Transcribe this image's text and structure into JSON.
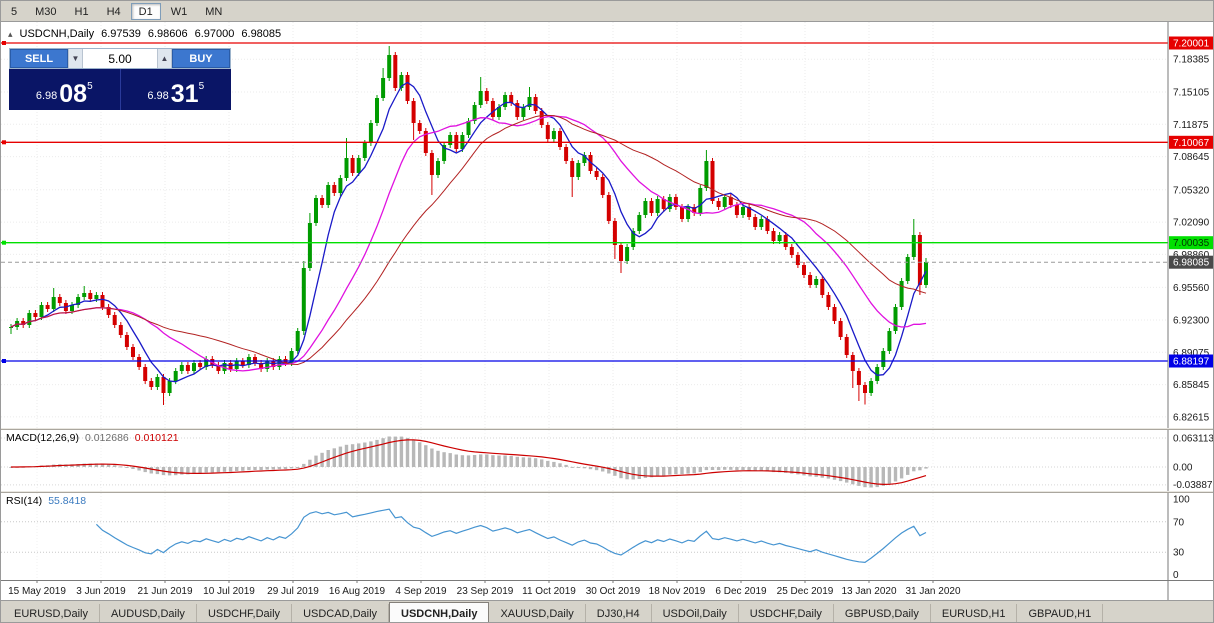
{
  "toolbar": {
    "timeframes": [
      "5",
      "M30",
      "H1",
      "H4",
      "D1",
      "W1",
      "MN"
    ],
    "active": "D1"
  },
  "window": {
    "title_icon": "▴",
    "symbol": "USDCNH,Daily",
    "open": "6.97539",
    "high": "6.98606",
    "low": "6.97000",
    "close": "6.98085"
  },
  "one_click": {
    "sell_label": "SELL",
    "buy_label": "BUY",
    "volume": "5.00",
    "spin_down_icon": "▼",
    "spin_up_icon": "▲",
    "sell_price": {
      "prefix": "6.98",
      "big": "08",
      "sup": "5"
    },
    "buy_price": {
      "prefix": "6.98",
      "big": "31",
      "sup": "5"
    }
  },
  "price_axis": {
    "labels": [
      "7.18385",
      "7.15105",
      "7.11875",
      "7.08645",
      "7.05320",
      "7.02090",
      "6.98860",
      "6.95560",
      "6.92300",
      "6.89075",
      "6.85845",
      "6.82615"
    ]
  },
  "hlines": [
    {
      "value": 7.20001,
      "label": "7.20001",
      "color": "#e60000",
      "text_color": "#ffffff"
    },
    {
      "value": 7.10067,
      "label": "7.10067",
      "color": "#e60000",
      "text_color": "#ffffff"
    },
    {
      "value": 7.00035,
      "label": "7.00035",
      "color": "#00e000",
      "text_color": "#003300"
    },
    {
      "value": 6.88197,
      "label": "6.88197",
      "color": "#0000e6",
      "text_color": "#ffffff"
    }
  ],
  "current_price": {
    "value": 6.98085,
    "label": "6.98085",
    "badge_color": "#4a4a4a",
    "text_color": "#ffffff"
  },
  "chart_data": {
    "type": "candlestick",
    "symbol": "USDCNH",
    "timeframe": "Daily",
    "up_color": "#009b00",
    "down_color": "#d40000",
    "y_range": [
      6.815,
      7.221
    ],
    "x_labels": [
      "15 May 2019",
      "3 Jun 2019",
      "21 Jun 2019",
      "10 Jul 2019",
      "29 Jul 2019",
      "16 Aug 2019",
      "4 Sep 2019",
      "23 Sep 2019",
      "11 Oct 2019",
      "30 Oct 2019",
      "18 Nov 2019",
      "6 Dec 2019",
      "25 Dec 2019",
      "13 Jan 2020",
      "31 Jan 2020"
    ],
    "overlays": [
      {
        "name": "ma-fast-blue",
        "type": "sma",
        "period": 6,
        "color": "#1a1ac8",
        "width": 1.3
      },
      {
        "name": "ma-mid-magenta",
        "type": "sma",
        "period": 18,
        "color": "#e012e0",
        "width": 1.3
      },
      {
        "name": "ma-slow-red",
        "type": "sma",
        "period": 30,
        "color": "#b22222",
        "width": 1
      }
    ],
    "closes": [
      6.916,
      6.922,
      6.918,
      6.93,
      6.926,
      6.938,
      6.934,
      6.946,
      6.94,
      6.932,
      6.938,
      6.946,
      6.95,
      6.944,
      6.948,
      6.936,
      6.928,
      6.918,
      6.908,
      6.896,
      6.886,
      6.876,
      6.862,
      6.856,
      6.866,
      6.85,
      6.862,
      6.872,
      6.878,
      6.872,
      6.88,
      6.876,
      6.884,
      6.878,
      6.872,
      6.88,
      6.874,
      6.882,
      6.878,
      6.886,
      6.88,
      6.874,
      6.882,
      6.876,
      6.884,
      6.88,
      6.892,
      6.912,
      6.975,
      7.02,
      7.045,
      7.038,
      7.058,
      7.05,
      7.065,
      7.085,
      7.07,
      7.085,
      7.1,
      7.12,
      7.145,
      7.165,
      7.188,
      7.155,
      7.168,
      7.142,
      7.12,
      7.112,
      7.09,
      7.068,
      7.082,
      7.098,
      7.108,
      7.094,
      7.108,
      7.122,
      7.138,
      7.152,
      7.142,
      7.126,
      7.136,
      7.148,
      7.14,
      7.126,
      7.136,
      7.146,
      7.132,
      7.118,
      7.104,
      7.112,
      7.096,
      7.082,
      7.066,
      7.08,
      7.088,
      7.072,
      7.066,
      7.048,
      7.022,
      6.998,
      6.982,
      6.996,
      7.012,
      7.028,
      7.042,
      7.03,
      7.044,
      7.034,
      7.046,
      7.036,
      7.024,
      7.036,
      7.03,
      7.055,
      7.082,
      7.042,
      7.036,
      7.046,
      7.038,
      7.028,
      7.036,
      7.026,
      7.016,
      7.024,
      7.012,
      7.002,
      7.008,
      6.996,
      6.988,
      6.978,
      6.968,
      6.958,
      6.964,
      6.948,
      6.936,
      6.922,
      6.906,
      6.888,
      6.872,
      6.858,
      6.85,
      6.862,
      6.876,
      6.892,
      6.912,
      6.936,
      6.962,
      6.986,
      7.008,
      6.958,
      6.981
    ],
    "highs": [
      6.919,
      6.925,
      6.925,
      6.933,
      6.933,
      6.941,
      6.941,
      6.955,
      6.949,
      6.943,
      6.941,
      6.949,
      6.957,
      6.953,
      6.951,
      6.951,
      6.939,
      6.931,
      6.921,
      6.911,
      6.899,
      6.889,
      6.879,
      6.865,
      6.869,
      6.869,
      6.865,
      6.875,
      6.881,
      6.881,
      6.883,
      6.883,
      6.887,
      6.887,
      6.881,
      6.883,
      6.883,
      6.885,
      6.885,
      6.889,
      6.889,
      6.883,
      6.885,
      6.885,
      6.887,
      6.887,
      6.895,
      6.915,
      6.982,
      7.03,
      7.048,
      7.048,
      7.061,
      7.061,
      7.068,
      7.105,
      7.088,
      7.088,
      7.103,
      7.123,
      7.148,
      7.175,
      7.197,
      7.191,
      7.171,
      7.171,
      7.145,
      7.123,
      7.115,
      7.093,
      7.085,
      7.101,
      7.111,
      7.111,
      7.111,
      7.125,
      7.141,
      7.166,
      7.155,
      7.145,
      7.139,
      7.151,
      7.151,
      7.143,
      7.139,
      7.156,
      7.149,
      7.135,
      7.121,
      7.115,
      7.115,
      7.099,
      7.085,
      7.083,
      7.091,
      7.091,
      7.075,
      7.069,
      7.051,
      7.025,
      7.001,
      6.999,
      7.015,
      7.031,
      7.045,
      7.045,
      7.047,
      7.047,
      7.049,
      7.049,
      7.039,
      7.039,
      7.039,
      7.058,
      7.093,
      7.085,
      7.045,
      7.049,
      7.049,
      7.041,
      7.039,
      7.039,
      7.029,
      7.027,
      7.027,
      7.015,
      7.011,
      7.011,
      6.999,
      6.991,
      6.981,
      6.971,
      6.967,
      6.967,
      6.951,
      6.939,
      6.925,
      6.909,
      6.891,
      6.875,
      6.861,
      6.865,
      6.879,
      6.895,
      6.915,
      6.939,
      6.965,
      6.989,
      7.024,
      7.011,
      6.985
    ],
    "lows": [
      6.909,
      6.913,
      6.915,
      6.915,
      6.923,
      6.923,
      6.931,
      6.931,
      6.937,
      6.929,
      6.929,
      6.935,
      6.943,
      6.941,
      6.941,
      6.933,
      6.925,
      6.915,
      6.905,
      6.893,
      6.883,
      6.873,
      6.859,
      6.853,
      6.853,
      6.838,
      6.847,
      6.859,
      6.869,
      6.869,
      6.869,
      6.873,
      6.873,
      6.875,
      6.869,
      6.869,
      6.871,
      6.871,
      6.875,
      6.875,
      6.877,
      6.871,
      6.871,
      6.873,
      6.873,
      6.877,
      6.877,
      6.889,
      6.908,
      6.972,
      7.017,
      7.035,
      7.035,
      7.047,
      7.047,
      7.062,
      7.067,
      7.067,
      7.082,
      7.097,
      7.117,
      7.142,
      7.162,
      7.152,
      7.152,
      7.139,
      7.103,
      7.109,
      7.087,
      7.048,
      7.065,
      7.079,
      7.095,
      7.091,
      7.091,
      7.105,
      7.119,
      7.135,
      7.139,
      7.123,
      7.123,
      7.133,
      7.137,
      7.123,
      7.123,
      7.133,
      7.129,
      7.115,
      7.101,
      7.101,
      7.093,
      7.079,
      7.046,
      7.063,
      7.077,
      7.069,
      7.063,
      7.045,
      7.019,
      6.984,
      6.97,
      6.979,
      6.993,
      7.009,
      7.025,
      7.027,
      7.027,
      7.031,
      7.031,
      7.033,
      7.021,
      7.021,
      7.027,
      7.027,
      7.052,
      7.039,
      7.033,
      7.033,
      7.035,
      7.025,
      7.025,
      7.023,
      7.013,
      7.013,
      7.009,
      6.999,
      6.999,
      6.993,
      6.985,
      6.975,
      6.965,
      6.955,
      6.955,
      6.945,
      6.933,
      6.919,
      6.903,
      6.885,
      6.855,
      6.842,
      6.8385,
      6.847,
      6.859,
      6.873,
      6.889,
      6.909,
      6.933,
      6.959,
      6.983,
      6.948,
      6.955
    ]
  },
  "macd_panel": {
    "name": "MACD(12,26,9)",
    "value_main": "0.012686",
    "value_signal": "0.010121",
    "axis_labels": [
      "0.063113",
      "0.00",
      "-0.038872"
    ],
    "axis_values": [
      0.063113,
      0,
      -0.038872
    ],
    "histogram_color": "#b8b8b8",
    "signal_color": "#cc0000"
  },
  "rsi_panel": {
    "name": "RSI(14)",
    "value": "55.8418",
    "axis_labels": [
      "100",
      "70",
      "30",
      "0"
    ],
    "axis_values": [
      100,
      70,
      30,
      0
    ],
    "levels": [
      70,
      30
    ],
    "line_color": "#4694d1"
  },
  "tabs": {
    "items": [
      "EURUSD,Daily",
      "AUDUSD,Daily",
      "USDCHF,Daily",
      "USDCAD,Daily",
      "USDCNH,Daily",
      "XAUUSD,Daily",
      "DJ30,H4",
      "USDOil,Daily",
      "USDCHF,Daily",
      "GBPUSD,Daily",
      "EURUSD,H1",
      "GBPAUD,H1"
    ],
    "active_index": 4
  }
}
